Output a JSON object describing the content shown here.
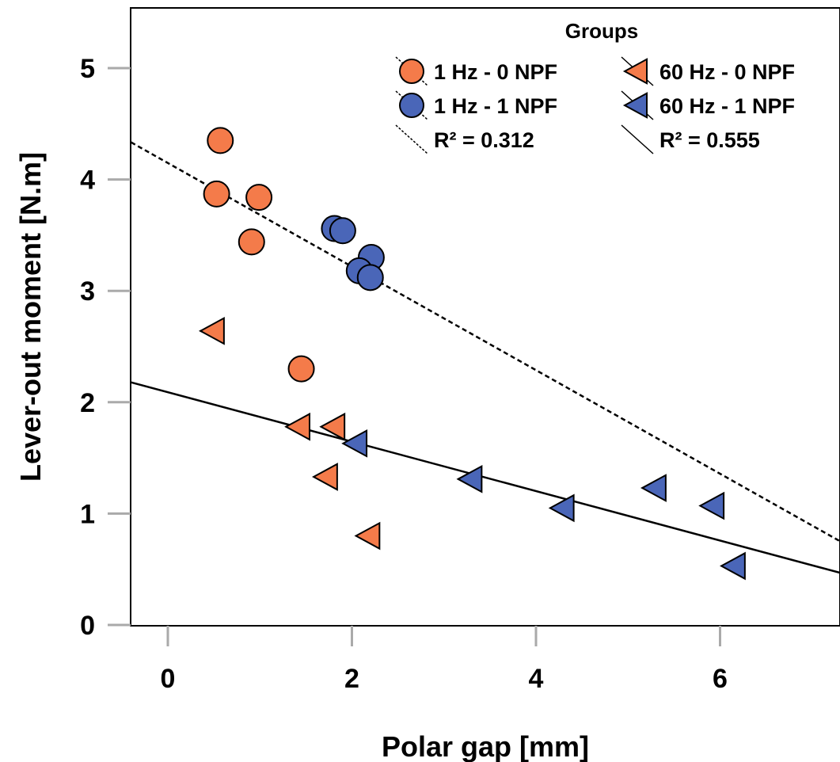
{
  "chart_data": {
    "type": "scatter",
    "xlabel": "Polar gap [mm]",
    "ylabel": "Lever-out moment [N.m]",
    "xlim": [
      -0.4,
      7.3
    ],
    "ylim": [
      0,
      5.55
    ],
    "xticks": [
      0,
      2,
      4,
      6
    ],
    "yticks": [
      0,
      1,
      2,
      3,
      4,
      5
    ],
    "legend": {
      "title": "Groups",
      "placement": "top-right",
      "entries": [
        {
          "label": "1 Hz - 0 NPF",
          "series": 0
        },
        {
          "label": "60 Hz - 0 NPF",
          "series": 2
        },
        {
          "label": "1 Hz - 1 NPF",
          "series": 1
        },
        {
          "label": "60 Hz - 1 NPF",
          "series": 3
        },
        {
          "label": "R² = 0.312",
          "fit": 0
        },
        {
          "label": "R² = 0.555",
          "fit": 1
        }
      ]
    },
    "series": [
      {
        "name": "1 Hz - 0 NPF",
        "marker": "circle",
        "color": "#F47B4A",
        "points": [
          [
            0.57,
            4.35
          ],
          [
            0.53,
            3.87
          ],
          [
            0.99,
            3.84
          ],
          [
            0.91,
            3.44
          ],
          [
            1.45,
            2.3
          ]
        ]
      },
      {
        "name": "1 Hz - 1 NPF",
        "marker": "circle",
        "color": "#4A66B8",
        "points": [
          [
            1.81,
            3.56
          ],
          [
            1.9,
            3.54
          ],
          [
            2.21,
            3.3
          ],
          [
            2.08,
            3.18
          ],
          [
            2.2,
            3.12
          ]
        ]
      },
      {
        "name": "60 Hz - 0 NPF",
        "marker": "triangle-left",
        "color": "#F47B4A",
        "points": [
          [
            0.5,
            2.64
          ],
          [
            1.43,
            1.78
          ],
          [
            1.81,
            1.78
          ],
          [
            1.73,
            1.33
          ],
          [
            2.19,
            0.8
          ]
        ]
      },
      {
        "name": "60 Hz - 1 NPF",
        "marker": "triangle-left",
        "color": "#4A66B8",
        "points": [
          [
            2.05,
            1.63
          ],
          [
            3.3,
            1.31
          ],
          [
            4.3,
            1.05
          ],
          [
            5.3,
            1.23
          ],
          [
            5.93,
            1.07
          ],
          [
            6.16,
            0.53
          ]
        ]
      }
    ],
    "fits": [
      {
        "label": "R² = 0.312",
        "style": "dotted",
        "slope": -0.465,
        "intercept": 4.148
      },
      {
        "label": "R² = 0.555",
        "style": "solid",
        "slope": -0.222,
        "intercept": 2.09
      }
    ],
    "grid": false
  }
}
